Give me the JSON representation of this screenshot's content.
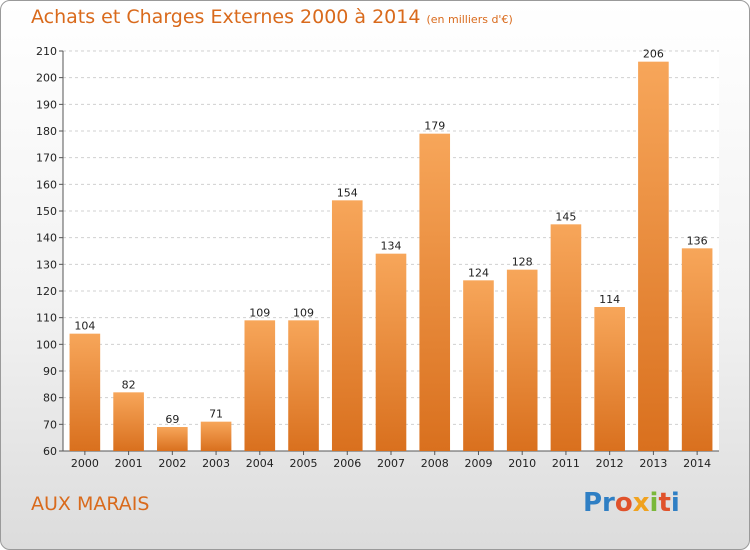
{
  "chart_data": {
    "type": "bar",
    "title": "Achats et Charges Externes 2000 à 2014",
    "subtitle": "(en milliers d'€)",
    "categories": [
      "2000",
      "2001",
      "2002",
      "2003",
      "2004",
      "2005",
      "2006",
      "2007",
      "2008",
      "2009",
      "2010",
      "2011",
      "2012",
      "2013",
      "2014"
    ],
    "values": [
      104,
      82,
      69,
      71,
      109,
      109,
      154,
      134,
      179,
      124,
      128,
      145,
      114,
      206,
      136
    ],
    "ylim": [
      60,
      210
    ],
    "yticks": [
      60,
      70,
      80,
      90,
      100,
      110,
      120,
      130,
      140,
      150,
      160,
      170,
      180,
      190,
      200,
      210
    ],
    "grid": true,
    "bar_color_top": "#f7a65a",
    "bar_color_bottom": "#d9701e"
  },
  "footer": {
    "place": "AUX MARAIS",
    "logo": [
      "Pr",
      "o",
      "x",
      "i",
      "t",
      "i"
    ]
  }
}
